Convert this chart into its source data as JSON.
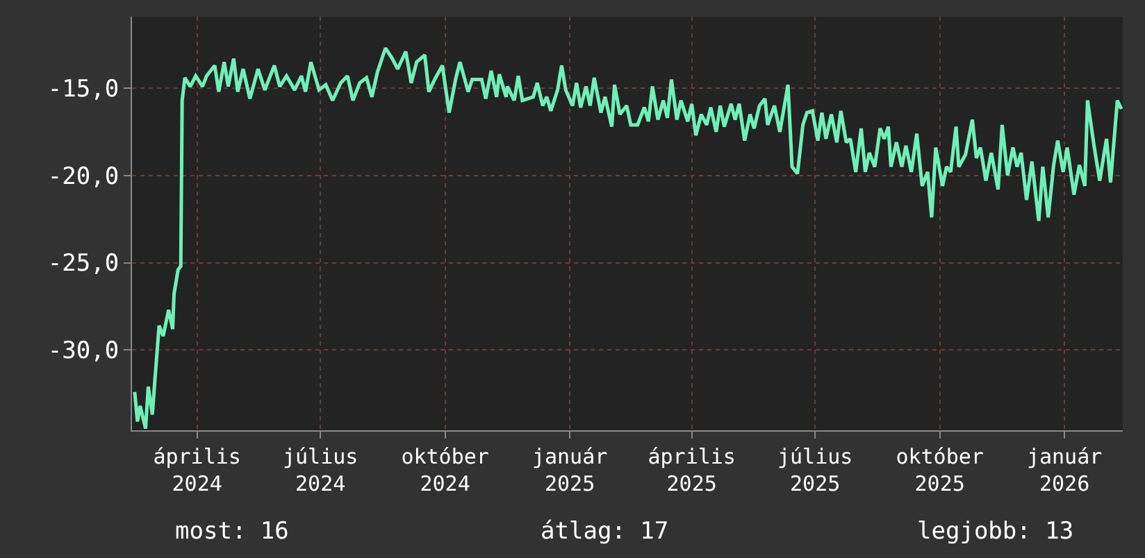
{
  "chart_data": {
    "type": "line",
    "xlim": [
      "2024-02-13",
      "2026-02-13"
    ],
    "ylim": [
      -34.6,
      -10.9
    ],
    "xticks": [
      {
        "value": "2024-04-01",
        "label": "április 2024"
      },
      {
        "value": "2024-07-01",
        "label": "július 2024"
      },
      {
        "value": "2024-10-01",
        "label": "október 2024"
      },
      {
        "value": "2025-01-01",
        "label": "január 2025"
      },
      {
        "value": "2025-04-01",
        "label": "április 2025"
      },
      {
        "value": "2025-07-01",
        "label": "július 2025"
      },
      {
        "value": "2025-10-01",
        "label": "október 2025"
      },
      {
        "value": "2026-01-01",
        "label": "január 2026"
      }
    ],
    "yticks": [
      {
        "value": -15,
        "label": "-15,0"
      },
      {
        "value": -20,
        "label": "-20,0"
      },
      {
        "value": -25,
        "label": "-25,0"
      },
      {
        "value": -30,
        "label": "-30,0"
      }
    ],
    "grid": true,
    "legend": false,
    "marker": "none",
    "line_style": "solid",
    "annotations": [
      "most: 16",
      "átlag: 17",
      "legjobb: 13"
    ],
    "x": [
      "2024-02-15",
      "2024-02-17",
      "2024-02-19",
      "2024-02-23",
      "2024-02-25",
      "2024-02-28",
      "2024-03-01",
      "2024-03-04",
      "2024-03-07",
      "2024-03-11",
      "2024-03-14",
      "2024-03-15",
      "2024-03-18",
      "2024-03-20",
      "2024-03-21",
      "2024-03-23",
      "2024-03-27",
      "2024-03-31",
      "2024-04-05",
      "2024-04-08",
      "2024-04-14",
      "2024-04-17",
      "2024-04-21",
      "2024-04-24",
      "2024-04-28",
      "2024-05-01",
      "2024-05-05",
      "2024-05-10",
      "2024-05-16",
      "2024-05-21",
      "2024-05-28",
      "2024-06-01",
      "2024-06-06",
      "2024-06-12",
      "2024-06-17",
      "2024-06-20",
      "2024-06-24",
      "2024-06-30",
      "2024-07-05",
      "2024-07-10",
      "2024-07-16",
      "2024-07-21",
      "2024-07-25",
      "2024-07-30",
      "2024-08-04",
      "2024-08-08",
      "2024-08-12",
      "2024-08-18",
      "2024-08-23",
      "2024-08-27",
      "2024-09-02",
      "2024-09-06",
      "2024-09-10",
      "2024-09-16",
      "2024-09-19",
      "2024-09-24",
      "2024-09-29",
      "2024-10-04",
      "2024-10-09",
      "2024-10-12",
      "2024-10-18",
      "2024-10-21",
      "2024-10-28",
      "2024-10-31",
      "2024-11-04",
      "2024-11-08",
      "2024-11-10",
      "2024-11-15",
      "2024-11-16",
      "2024-11-21",
      "2024-11-24",
      "2024-11-27",
      "2024-12-05",
      "2024-12-08",
      "2024-12-12",
      "2024-12-15",
      "2024-12-18",
      "2024-12-23",
      "2024-12-26",
      "2024-12-29",
      "2025-01-03",
      "2025-01-06",
      "2025-01-09",
      "2025-01-13",
      "2025-01-16",
      "2025-01-19",
      "2025-01-24",
      "2025-01-27",
      "2025-02-01",
      "2025-02-03",
      "2025-02-07",
      "2025-02-12",
      "2025-02-15",
      "2025-02-20",
      "2025-02-25",
      "2025-02-28",
      "2025-03-03",
      "2025-03-07",
      "2025-03-11",
      "2025-03-14",
      "2025-03-17",
      "2025-03-21",
      "2025-03-24",
      "2025-03-29",
      "2025-04-01",
      "2025-04-04",
      "2025-04-08",
      "2025-04-12",
      "2025-04-15",
      "2025-04-19",
      "2025-04-22",
      "2025-04-25",
      "2025-04-30",
      "2025-05-03",
      "2025-05-06",
      "2025-05-10",
      "2025-05-14",
      "2025-05-17",
      "2025-05-21",
      "2025-05-25",
      "2025-05-27",
      "2025-06-01",
      "2025-06-05",
      "2025-06-11",
      "2025-06-14",
      "2025-06-18",
      "2025-06-22",
      "2025-06-25",
      "2025-06-29",
      "2025-07-03",
      "2025-07-06",
      "2025-07-09",
      "2025-07-13",
      "2025-07-17",
      "2025-07-20",
      "2025-07-24",
      "2025-07-27",
      "2025-07-31",
      "2025-08-04",
      "2025-08-07",
      "2025-08-10",
      "2025-08-14",
      "2025-08-18",
      "2025-08-21",
      "2025-08-24",
      "2025-08-26",
      "2025-08-30",
      "2025-09-03",
      "2025-09-06",
      "2025-09-10",
      "2025-09-14",
      "2025-09-18",
      "2025-09-22",
      "2025-09-25",
      "2025-09-28",
      "2025-10-03",
      "2025-10-06",
      "2025-10-09",
      "2025-10-13",
      "2025-10-15",
      "2025-10-20",
      "2025-10-25",
      "2025-10-28",
      "2025-10-31",
      "2025-11-04",
      "2025-11-08",
      "2025-11-13",
      "2025-11-16",
      "2025-11-20",
      "2025-11-24",
      "2025-11-27",
      "2025-11-30",
      "2025-12-04",
      "2025-12-08",
      "2025-12-13",
      "2025-12-16",
      "2025-12-20",
      "2025-12-24",
      "2025-12-27",
      "2025-12-31",
      "2026-01-03",
      "2026-01-08",
      "2026-01-12",
      "2026-01-16",
      "2026-01-18",
      "2026-01-23",
      "2026-01-27",
      "2026-02-01",
      "2026-02-04",
      "2026-02-09",
      "2026-02-12"
    ],
    "series": [
      {
        "color": "#6ff0b8",
        "values": [
          -32.4,
          -34.1,
          -33.2,
          -34.5,
          -32.1,
          -33.7,
          -31.6,
          -28.6,
          -29.2,
          -27.7,
          -28.8,
          -26.8,
          -25.4,
          -25.2,
          -15.7,
          -14.4,
          -14.9,
          -14.3,
          -14.9,
          -14.3,
          -13.7,
          -15.2,
          -13.5,
          -14.9,
          -13.3,
          -15.2,
          -13.9,
          -15.6,
          -13.9,
          -15.1,
          -13.7,
          -14.9,
          -14.3,
          -15.1,
          -14.3,
          -15.2,
          -13.5,
          -15.1,
          -14.8,
          -15.7,
          -14.7,
          -14.3,
          -15.7,
          -14.7,
          -14.4,
          -15.5,
          -14.1,
          -12.7,
          -13.3,
          -13.9,
          -12.9,
          -14.7,
          -13.5,
          -13.1,
          -15.2,
          -14.4,
          -13.7,
          -16.4,
          -14.4,
          -13.5,
          -15.2,
          -14.5,
          -14.5,
          -15.6,
          -14.0,
          -15.5,
          -14.2,
          -15.5,
          -14.9,
          -15.7,
          -14.3,
          -15.7,
          -15.5,
          -14.7,
          -16.0,
          -15.5,
          -16.3,
          -15.1,
          -13.7,
          -15.1,
          -16.0,
          -14.7,
          -16.1,
          -14.9,
          -16.0,
          -14.4,
          -16.4,
          -15.5,
          -17.2,
          -14.8,
          -16.5,
          -16.0,
          -17.1,
          -17.1,
          -16.1,
          -16.9,
          -14.9,
          -16.8,
          -15.7,
          -16.7,
          -14.5,
          -16.8,
          -15.7,
          -16.9,
          -15.9,
          -17.7,
          -16.5,
          -17.1,
          -16.1,
          -17.5,
          -16.0,
          -17.2,
          -15.9,
          -16.8,
          -15.9,
          -18.0,
          -16.5,
          -17.3,
          -16.0,
          -15.6,
          -17.1,
          -16.0,
          -17.5,
          -14.8,
          -19.5,
          -19.9,
          -17.1,
          -16.4,
          -16.3,
          -18.0,
          -16.4,
          -17.9,
          -16.5,
          -18.1,
          -16.3,
          -18.1,
          -17.9,
          -19.8,
          -17.3,
          -19.8,
          -18.7,
          -19.5,
          -17.3,
          -17.9,
          -17.2,
          -19.5,
          -18.1,
          -19.5,
          -18.3,
          -19.8,
          -17.6,
          -20.6,
          -19.8,
          -22.4,
          -18.4,
          -20.6,
          -19.5,
          -19.8,
          -17.2,
          -19.5,
          -18.8,
          -16.8,
          -19.0,
          -18.4,
          -20.3,
          -18.7,
          -20.8,
          -17.1,
          -20.0,
          -18.4,
          -19.5,
          -18.7,
          -21.4,
          -19.2,
          -22.6,
          -19.5,
          -22.4,
          -19.4,
          -18.0,
          -19.8,
          -18.4,
          -21.1,
          -19.4,
          -20.6,
          -15.7,
          -18.4,
          -20.3,
          -17.9,
          -20.4,
          -15.7,
          -16.2
        ]
      }
    ]
  }
}
